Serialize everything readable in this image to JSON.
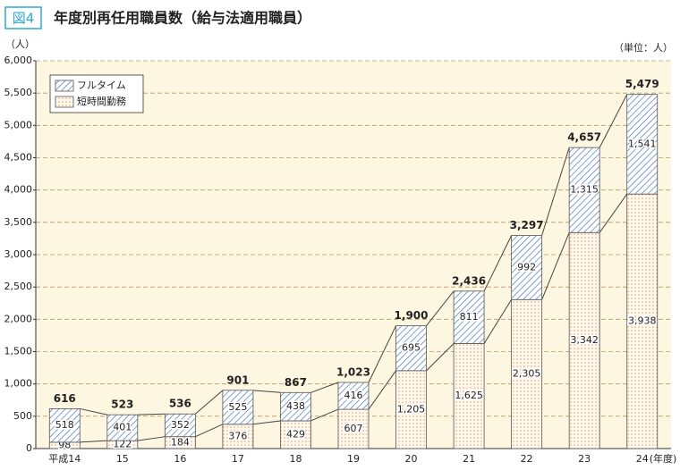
{
  "chart_data": {
    "type": "stacked_bar",
    "figure_label": "図4",
    "title": "年度別再任用職員数（給与法適用職員）",
    "y_label": "（人）",
    "unit_note": "（単位：人）",
    "x_label": "(年度)",
    "categories": [
      "平成14",
      "15",
      "16",
      "17",
      "18",
      "19",
      "20",
      "21",
      "22",
      "23",
      "24"
    ],
    "series": [
      {
        "name": "短時間勤務",
        "color": "#f0a060",
        "pattern": "dots",
        "values": [
          98,
          122,
          184,
          376,
          429,
          607,
          1205,
          1625,
          2305,
          3342,
          3938
        ],
        "value_labels": [
          "98",
          "122",
          "184",
          "376",
          "429",
          "607",
          "1,205",
          "1,625",
          "2,305",
          "3,342",
          "3,938"
        ]
      },
      {
        "name": "フルタイム",
        "color": "#4a78b8",
        "pattern": "diagonal",
        "values": [
          518,
          401,
          352,
          525,
          438,
          416,
          695,
          811,
          992,
          1315,
          1541
        ],
        "value_labels": [
          "518",
          "401",
          "352",
          "525",
          "438",
          "416",
          "695",
          "811",
          "992",
          "1,315",
          "1,541"
        ]
      }
    ],
    "totals": {
      "values": [
        616,
        523,
        536,
        901,
        867,
        1023,
        1900,
        2436,
        3297,
        4657,
        5479
      ],
      "value_labels": [
        "616",
        "523",
        "536",
        "901",
        "867",
        "1,023",
        "1,900",
        "2,436",
        "3,297",
        "4,657",
        "5,479"
      ]
    },
    "ylim": [
      0,
      6000
    ],
    "yticks": [
      0,
      500,
      {
        "value": 1000,
        "label": "1,000"
      },
      {
        "value": 1500,
        "label": "1,500"
      },
      {
        "value": 2000,
        "label": "2,000"
      },
      {
        "value": 2500,
        "label": "2,500"
      },
      {
        "value": 3000,
        "label": "3,000"
      },
      {
        "value": 3500,
        "label": "3,500"
      },
      {
        "value": 4000,
        "label": "4,000"
      },
      {
        "value": 4500,
        "label": "4,500"
      },
      {
        "value": 5000,
        "label": "5,000"
      },
      {
        "value": 5500,
        "label": "5,500"
      },
      {
        "value": 6000,
        "label": "6,000"
      }
    ],
    "grid": true,
    "legend": "upper left"
  }
}
